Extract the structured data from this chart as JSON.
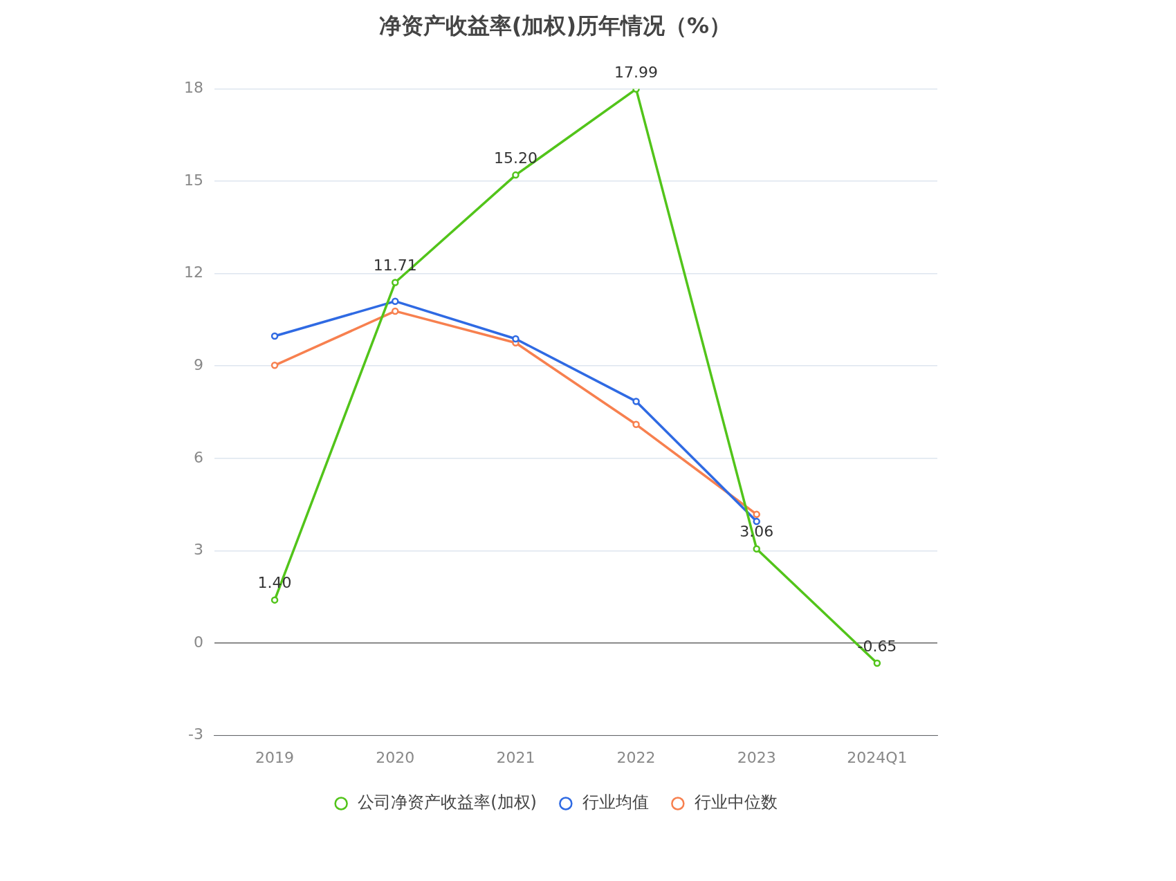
{
  "chart_data": {
    "type": "line",
    "title": "净资产收益率(加权)历年情况（%）",
    "categories": [
      "2019",
      "2020",
      "2021",
      "2022",
      "2023",
      "2024Q1"
    ],
    "series": [
      {
        "name": "公司净资产收益率(加权)",
        "color": "#52c41a",
        "values": [
          1.4,
          11.71,
          15.2,
          17.99,
          3.06,
          -0.65
        ],
        "value_labels": [
          "1.40",
          "11.71",
          "15.20",
          "17.99",
          "3.06",
          "-0.65"
        ]
      },
      {
        "name": "行业均值",
        "color": "#2f6ae3",
        "values": [
          9.97,
          11.1,
          9.88,
          7.85,
          3.95,
          null
        ]
      },
      {
        "name": "行业中位数",
        "color": "#f7804f",
        "values": [
          9.02,
          10.78,
          9.75,
          7.1,
          4.18,
          null
        ]
      }
    ],
    "ylim": [
      -3,
      18
    ],
    "yticks": [
      -3,
      0,
      3,
      6,
      9,
      12,
      15,
      18
    ],
    "grid": "y",
    "legend": "bottom",
    "marker": "circle",
    "line_style": "solid"
  }
}
